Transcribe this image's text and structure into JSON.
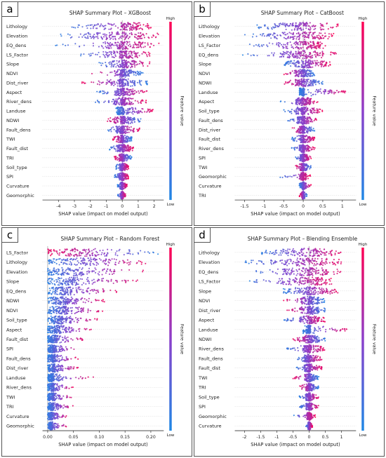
{
  "figure": {
    "colorbar": {
      "high": "High",
      "low": "Low",
      "label": "Feature value",
      "color_low": "#1E88E5",
      "color_mid": "#8B3FCB",
      "color_high": "#FF0052"
    }
  },
  "chart_data": [
    {
      "panel_letter": "a",
      "type": "scatter",
      "subtype": "shap-beeswarm",
      "title": "SHAP Summary Plot – XGBoost",
      "xlabel": "SHAP value (impact on model output)",
      "xlim": [
        -5,
        2.6
      ],
      "xticks": [
        -4,
        -3,
        -2,
        -1,
        0,
        1,
        2
      ],
      "features": [
        {
          "name": "Lithology",
          "min": -3.3,
          "max": 1.8,
          "q": [
            -2.0,
            -0.1,
            0.6,
            1.1
          ],
          "direction": 1
        },
        {
          "name": "Elevation",
          "min": -4.3,
          "max": 2.5,
          "q": [
            -2.5,
            -1.0,
            0.4,
            1.4
          ],
          "direction": 1
        },
        {
          "name": "EQ_dens",
          "min": -4.2,
          "max": 2.4,
          "q": [
            -1.5,
            -0.3,
            0.3,
            1.3
          ],
          "direction": 1
        },
        {
          "name": "LS_Factor",
          "min": -2.8,
          "max": 1.9,
          "q": [
            -1.2,
            -0.2,
            0.3,
            1.0
          ],
          "direction": 1
        },
        {
          "name": "Slope",
          "min": -1.6,
          "max": 1.8,
          "q": [
            -0.8,
            -0.1,
            0.3,
            1.1
          ],
          "direction": 1
        },
        {
          "name": "NDVI",
          "min": -2.0,
          "max": 1.3,
          "q": [
            -0.5,
            -0.1,
            0.2,
            0.7
          ],
          "direction": -1
        },
        {
          "name": "Dist_river",
          "min": -2.6,
          "max": 1.6,
          "q": [
            -1.0,
            -0.2,
            0.2,
            0.8
          ],
          "direction": -1
        },
        {
          "name": "Aspect",
          "min": -1.6,
          "max": 1.6,
          "q": [
            -0.5,
            -0.1,
            0.2,
            0.8
          ],
          "direction": 1
        },
        {
          "name": "River_dens",
          "min": -1.8,
          "max": 1.5,
          "q": [
            -0.6,
            -0.1,
            0.2,
            0.7
          ],
          "direction": 1
        },
        {
          "name": "Landuse",
          "min": -0.4,
          "max": 2.0,
          "q": [
            -0.3,
            -0.1,
            0.1,
            1.4
          ],
          "direction": 1
        },
        {
          "name": "NDWI",
          "min": -1.0,
          "max": 1.2,
          "q": [
            -0.5,
            -0.1,
            0.2,
            0.6
          ],
          "direction": -1
        },
        {
          "name": "Fault_dens",
          "min": -1.0,
          "max": 1.1,
          "q": [
            -0.4,
            -0.1,
            0.1,
            0.6
          ],
          "direction": 1
        },
        {
          "name": "TWI",
          "min": -0.6,
          "max": 0.6,
          "q": [
            -0.3,
            -0.1,
            0.1,
            0.4
          ],
          "direction": -1
        },
        {
          "name": "Fault_dist",
          "min": -0.8,
          "max": 0.7,
          "q": [
            -0.3,
            -0.1,
            0.2,
            0.5
          ],
          "direction": 1
        },
        {
          "name": "TRI",
          "min": -0.5,
          "max": 0.6,
          "q": [
            -0.2,
            -0.05,
            0.1,
            0.4
          ],
          "direction": -1
        },
        {
          "name": "Soil_type",
          "min": -0.4,
          "max": 0.4,
          "q": [
            -0.2,
            -0.05,
            0.05,
            0.3
          ],
          "direction": 1
        },
        {
          "name": "SPI",
          "min": -0.5,
          "max": 0.4,
          "q": [
            -0.2,
            -0.05,
            0.05,
            0.3
          ],
          "direction": 1
        },
        {
          "name": "Curvature",
          "min": -0.3,
          "max": 0.3,
          "q": [
            -0.1,
            -0.03,
            0.03,
            0.2
          ],
          "direction": 1
        },
        {
          "name": "Geomorphic",
          "min": -0.3,
          "max": 0.2,
          "q": [
            -0.1,
            -0.03,
            0.03,
            0.1
          ],
          "direction": 1
        }
      ]
    },
    {
      "panel_letter": "b",
      "type": "scatter",
      "subtype": "shap-beeswarm",
      "title": "SHAP Summary Plot – CatBoost",
      "xlabel": "SHAP value (impact on model output)",
      "xlim": [
        -1.75,
        1.35
      ],
      "xticks": [
        -1.5,
        -1.0,
        -0.5,
        0.0,
        0.5,
        1.0
      ],
      "features": [
        {
          "name": "Lithology",
          "min": -1.2,
          "max": 0.9,
          "q": [
            -0.8,
            -0.2,
            0.2,
            0.6
          ],
          "direction": 1
        },
        {
          "name": "Elevation",
          "min": -1.5,
          "max": 0.8,
          "q": [
            -0.9,
            -0.3,
            0.2,
            0.5
          ],
          "direction": 1
        },
        {
          "name": "LS_Factor",
          "min": -1.4,
          "max": 0.6,
          "q": [
            -0.7,
            -0.2,
            0.2,
            0.4
          ],
          "direction": 1
        },
        {
          "name": "EQ_dens",
          "min": -1.6,
          "max": 0.9,
          "q": [
            -0.6,
            -0.2,
            0.2,
            0.5
          ],
          "direction": 1
        },
        {
          "name": "Slope",
          "min": -0.5,
          "max": 0.7,
          "q": [
            -0.3,
            -0.05,
            0.2,
            0.5
          ],
          "direction": 1
        },
        {
          "name": "NDVI",
          "min": -0.5,
          "max": 0.3,
          "q": [
            -0.2,
            -0.05,
            0.05,
            0.2
          ],
          "direction": -1
        },
        {
          "name": "NDWI",
          "min": -0.5,
          "max": 0.5,
          "q": [
            -0.2,
            -0.05,
            0.1,
            0.3
          ],
          "direction": -1
        },
        {
          "name": "Landuse",
          "min": -0.1,
          "max": 1.1,
          "q": [
            -0.08,
            -0.03,
            0.03,
            0.8
          ],
          "direction": 1
        },
        {
          "name": "Aspect",
          "min": -0.6,
          "max": 0.4,
          "q": [
            -0.2,
            -0.05,
            0.05,
            0.2
          ],
          "direction": 1
        },
        {
          "name": "Soil_type",
          "min": -0.5,
          "max": 0.5,
          "q": [
            -0.2,
            -0.05,
            0.05,
            0.3
          ],
          "direction": 1
        },
        {
          "name": "Fault_dens",
          "min": -0.4,
          "max": 0.4,
          "q": [
            -0.15,
            -0.05,
            0.05,
            0.2
          ],
          "direction": 1
        },
        {
          "name": "Dist_river",
          "min": -0.3,
          "max": 0.3,
          "q": [
            -0.1,
            -0.03,
            0.03,
            0.2
          ],
          "direction": -1
        },
        {
          "name": "Fault_dist",
          "min": -0.3,
          "max": 0.3,
          "q": [
            -0.1,
            -0.03,
            0.03,
            0.2
          ],
          "direction": 1
        },
        {
          "name": "River_dens",
          "min": -0.3,
          "max": 0.3,
          "q": [
            -0.1,
            -0.03,
            0.03,
            0.15
          ],
          "direction": 1
        },
        {
          "name": "SPI",
          "min": -0.2,
          "max": 0.2,
          "q": [
            -0.08,
            -0.02,
            0.02,
            0.1
          ],
          "direction": 1
        },
        {
          "name": "TWI",
          "min": -0.2,
          "max": 0.2,
          "q": [
            -0.08,
            -0.02,
            0.02,
            0.1
          ],
          "direction": -1
        },
        {
          "name": "Geomorphic",
          "min": -0.6,
          "max": 0.2,
          "q": [
            -0.1,
            -0.02,
            0.02,
            0.08
          ],
          "direction": 1
        },
        {
          "name": "Curvature",
          "min": -0.1,
          "max": 0.2,
          "q": [
            -0.05,
            -0.01,
            0.01,
            0.08
          ],
          "direction": 1
        },
        {
          "name": "TRI",
          "min": -0.1,
          "max": 0.1,
          "q": [
            -0.04,
            -0.01,
            0.01,
            0.04
          ],
          "direction": -1
        }
      ]
    },
    {
      "panel_letter": "c",
      "type": "scatter",
      "subtype": "shap-beeswarm",
      "title": "SHAP Summary Plot – Random Forest",
      "xlabel": "SHAP value (impact on model output)",
      "xlim": [
        -0.01,
        0.225
      ],
      "xticks": [
        0.0,
        0.05,
        0.1,
        0.15,
        0.2
      ],
      "xticklabels": [
        "0.00",
        "0.05",
        "0.10",
        "0.15",
        "0.20"
      ],
      "features": [
        {
          "name": "LS_Factor",
          "min": 0.0,
          "max": 0.215,
          "q": [
            0.005,
            0.04,
            0.09,
            0.16
          ],
          "direction": -1
        },
        {
          "name": "Lithology",
          "min": 0.0,
          "max": 0.2,
          "q": [
            0.01,
            0.05,
            0.1,
            0.15
          ],
          "direction": 1
        },
        {
          "name": "Elevation",
          "min": 0.0,
          "max": 0.19,
          "q": [
            0.005,
            0.03,
            0.07,
            0.13
          ],
          "direction": 1
        },
        {
          "name": "Slope",
          "min": 0.0,
          "max": 0.18,
          "q": [
            0.005,
            0.03,
            0.06,
            0.12
          ],
          "direction": 1
        },
        {
          "name": "EQ_dens",
          "min": 0.0,
          "max": 0.14,
          "q": [
            0.005,
            0.025,
            0.05,
            0.09
          ],
          "direction": 1
        },
        {
          "name": "NDWI",
          "min": 0.0,
          "max": 0.11,
          "q": [
            0.005,
            0.02,
            0.04,
            0.07
          ],
          "direction": 1
        },
        {
          "name": "NDVI",
          "min": 0.0,
          "max": 0.11,
          "q": [
            0.005,
            0.02,
            0.04,
            0.07
          ],
          "direction": 1
        },
        {
          "name": "Soil_type",
          "min": 0.0,
          "max": 0.1,
          "q": [
            0.005,
            0.015,
            0.03,
            0.06
          ],
          "direction": 1
        },
        {
          "name": "Aspect",
          "min": 0.0,
          "max": 0.09,
          "q": [
            0.003,
            0.012,
            0.025,
            0.05
          ],
          "direction": 1
        },
        {
          "name": "Fault_dist",
          "min": 0.0,
          "max": 0.07,
          "q": [
            0.003,
            0.01,
            0.02,
            0.04
          ],
          "direction": 1
        },
        {
          "name": "SPI",
          "min": 0.0,
          "max": 0.06,
          "q": [
            0.002,
            0.008,
            0.015,
            0.03
          ],
          "direction": 1
        },
        {
          "name": "Fault_dens",
          "min": 0.0,
          "max": 0.06,
          "q": [
            0.002,
            0.008,
            0.015,
            0.03
          ],
          "direction": 1
        },
        {
          "name": "Dist_river",
          "min": 0.0,
          "max": 0.06,
          "q": [
            0.002,
            0.008,
            0.015,
            0.03
          ],
          "direction": 1
        },
        {
          "name": "Landuse",
          "min": 0.0,
          "max": 0.09,
          "q": [
            0.002,
            0.006,
            0.012,
            0.03
          ],
          "direction": 1
        },
        {
          "name": "River_dens",
          "min": 0.0,
          "max": 0.05,
          "q": [
            0.002,
            0.007,
            0.012,
            0.025
          ],
          "direction": 1
        },
        {
          "name": "TWI",
          "min": 0.0,
          "max": 0.05,
          "q": [
            0.002,
            0.006,
            0.012,
            0.025
          ],
          "direction": 1
        },
        {
          "name": "TRI",
          "min": 0.0,
          "max": 0.05,
          "q": [
            0.002,
            0.006,
            0.012,
            0.025
          ],
          "direction": 1
        },
        {
          "name": "Curvature",
          "min": 0.0,
          "max": 0.04,
          "q": [
            0.002,
            0.005,
            0.01,
            0.02
          ],
          "direction": 1
        },
        {
          "name": "Geomorphic",
          "min": 0.0,
          "max": 0.04,
          "q": [
            0.002,
            0.005,
            0.01,
            0.02
          ],
          "direction": 1
        }
      ]
    },
    {
      "panel_letter": "d",
      "type": "scatter",
      "subtype": "shap-beeswarm",
      "title": "SHAP Summary Plot – Blending Ensemble",
      "xlabel": "SHAP value (impact on model output)",
      "xlim": [
        -2.3,
        1.45
      ],
      "xticks": [
        -2.0,
        -1.5,
        -1.0,
        -0.5,
        0.0,
        0.5,
        1.0
      ],
      "features": [
        {
          "name": "Lithology",
          "min": -1.5,
          "max": 1.0,
          "q": [
            -0.9,
            -0.3,
            0.3,
            0.7
          ],
          "direction": 1
        },
        {
          "name": "Elevation",
          "min": -2.0,
          "max": 1.0,
          "q": [
            -1.2,
            -0.4,
            0.2,
            0.6
          ],
          "direction": 1
        },
        {
          "name": "EQ_dens",
          "min": -2.0,
          "max": 1.1,
          "q": [
            -0.8,
            -0.3,
            0.2,
            0.6
          ],
          "direction": 1
        },
        {
          "name": "LS_Factor",
          "min": -1.9,
          "max": 0.7,
          "q": [
            -0.9,
            -0.3,
            0.2,
            0.5
          ],
          "direction": 1
        },
        {
          "name": "Slope",
          "min": -0.8,
          "max": 0.9,
          "q": [
            -0.5,
            -0.1,
            0.2,
            0.6
          ],
          "direction": 1
        },
        {
          "name": "NDVI",
          "min": -0.8,
          "max": 0.5,
          "q": [
            -0.3,
            -0.05,
            0.1,
            0.3
          ],
          "direction": -1
        },
        {
          "name": "Dist_river",
          "min": -0.7,
          "max": 0.5,
          "q": [
            -0.3,
            -0.05,
            0.1,
            0.3
          ],
          "direction": -1
        },
        {
          "name": "Aspect",
          "min": -0.8,
          "max": 0.5,
          "q": [
            -0.3,
            -0.05,
            0.1,
            0.3
          ],
          "direction": 1
        },
        {
          "name": "Landuse",
          "min": -0.2,
          "max": 1.2,
          "q": [
            -0.1,
            -0.03,
            0.05,
            0.9
          ],
          "direction": 1
        },
        {
          "name": "NDWI",
          "min": -0.5,
          "max": 0.5,
          "q": [
            -0.2,
            -0.05,
            0.1,
            0.3
          ],
          "direction": -1
        },
        {
          "name": "River_dens",
          "min": -0.7,
          "max": 0.5,
          "q": [
            -0.2,
            -0.05,
            0.05,
            0.3
          ],
          "direction": 1
        },
        {
          "name": "Fault_dens",
          "min": -0.4,
          "max": 0.4,
          "q": [
            -0.15,
            -0.05,
            0.05,
            0.2
          ],
          "direction": 1
        },
        {
          "name": "Fault_dist",
          "min": -0.4,
          "max": 0.4,
          "q": [
            -0.15,
            -0.05,
            0.05,
            0.2
          ],
          "direction": 1
        },
        {
          "name": "TWI",
          "min": -0.5,
          "max": 0.3,
          "q": [
            -0.15,
            -0.05,
            0.05,
            0.15
          ],
          "direction": -1
        },
        {
          "name": "TRI",
          "min": -0.3,
          "max": 0.3,
          "q": [
            -0.1,
            -0.03,
            0.03,
            0.15
          ],
          "direction": -1
        },
        {
          "name": "Soil_type",
          "min": -0.3,
          "max": 0.3,
          "q": [
            -0.1,
            -0.03,
            0.03,
            0.15
          ],
          "direction": 1
        },
        {
          "name": "SPI",
          "min": -0.3,
          "max": 0.3,
          "q": [
            -0.1,
            -0.03,
            0.03,
            0.1
          ],
          "direction": 1
        },
        {
          "name": "Geomorphic",
          "min": -0.5,
          "max": 0.2,
          "q": [
            -0.08,
            -0.02,
            0.02,
            0.08
          ],
          "direction": 1
        },
        {
          "name": "Curvature",
          "min": -0.1,
          "max": 0.1,
          "q": [
            -0.04,
            -0.01,
            0.01,
            0.05
          ],
          "direction": 1
        }
      ]
    }
  ]
}
